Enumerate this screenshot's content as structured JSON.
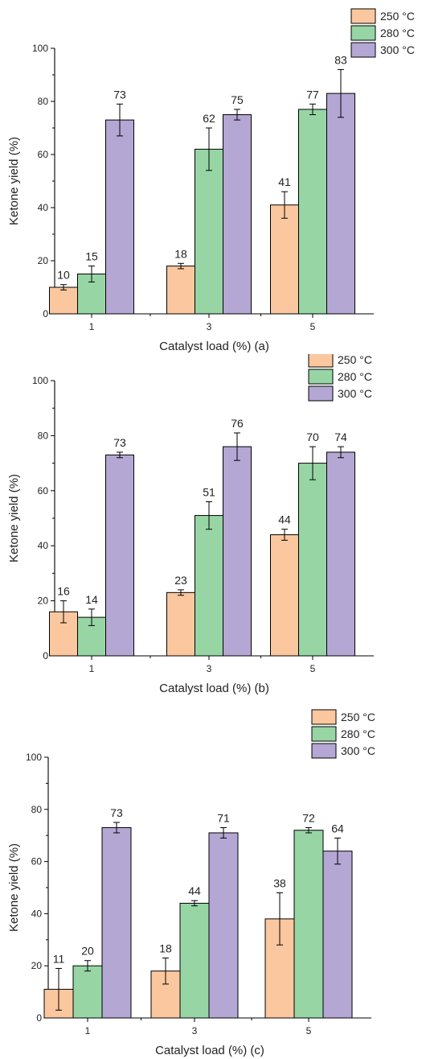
{
  "colors": {
    "250": "#fbc79f",
    "280": "#97d5a5",
    "300": "#b4a7d4"
  },
  "chart_data": [
    {
      "panel": "a",
      "type": "bar",
      "categories": [
        "1",
        "3",
        "5"
      ],
      "ylim": [
        0,
        100
      ],
      "yticks": [
        "0",
        "20",
        "40",
        "60",
        "80",
        "100"
      ],
      "xlabel": "Catalyst load (%) (a)",
      "ylabel": "Ketone yield (%)",
      "legend_position": "top-right",
      "series": [
        {
          "name": "250 °C",
          "values": [
            10,
            18,
            41
          ],
          "errors": [
            1,
            1,
            5
          ],
          "labels": [
            "10",
            "18",
            "41"
          ]
        },
        {
          "name": "280 °C",
          "values": [
            15,
            62,
            77
          ],
          "errors": [
            3,
            8,
            2
          ],
          "labels": [
            "15",
            "62",
            "77"
          ]
        },
        {
          "name": "300 °C",
          "values": [
            73,
            75,
            83
          ],
          "errors": [
            6,
            2,
            9
          ],
          "labels": [
            "73",
            "75",
            "83"
          ]
        }
      ]
    },
    {
      "panel": "b",
      "type": "bar",
      "categories": [
        "1",
        "3",
        "5"
      ],
      "ylim": [
        0,
        100
      ],
      "yticks": [
        "0",
        "20",
        "40",
        "60",
        "80",
        "100"
      ],
      "xlabel": "Catalyst load (%) (b)",
      "ylabel": "Ketone yield (%)",
      "legend_position": "top-right",
      "series": [
        {
          "name": "250 °C",
          "values": [
            16,
            23,
            44
          ],
          "errors": [
            4,
            1,
            2
          ],
          "labels": [
            "16",
            "23",
            "44"
          ]
        },
        {
          "name": "280 °C",
          "values": [
            14,
            51,
            70
          ],
          "errors": [
            3,
            5,
            6
          ],
          "labels": [
            "14",
            "51",
            "70"
          ]
        },
        {
          "name": "300 °C",
          "values": [
            73,
            76,
            74
          ],
          "errors": [
            1,
            5,
            2
          ],
          "labels": [
            "73",
            "76",
            "74"
          ]
        }
      ]
    },
    {
      "panel": "c",
      "type": "bar",
      "categories": [
        "1",
        "3",
        "5"
      ],
      "ylim": [
        0,
        100
      ],
      "yticks": [
        "0",
        "20",
        "40",
        "60",
        "80",
        "100"
      ],
      "xlabel": "Catalyst load (%) (c)",
      "ylabel": "Ketone yield (%)",
      "legend_position": "top-right",
      "series": [
        {
          "name": "250 °C",
          "values": [
            11,
            18,
            38
          ],
          "errors": [
            8,
            5,
            10
          ],
          "labels": [
            "11",
            "18",
            "38"
          ]
        },
        {
          "name": "280 °C",
          "values": [
            20,
            44,
            72
          ],
          "errors": [
            2,
            1,
            1
          ],
          "labels": [
            "20",
            "44",
            "72"
          ]
        },
        {
          "name": "300 °C",
          "values": [
            73,
            71,
            64
          ],
          "errors": [
            2,
            2,
            5
          ],
          "labels": [
            "73",
            "71",
            "64"
          ]
        }
      ]
    }
  ]
}
